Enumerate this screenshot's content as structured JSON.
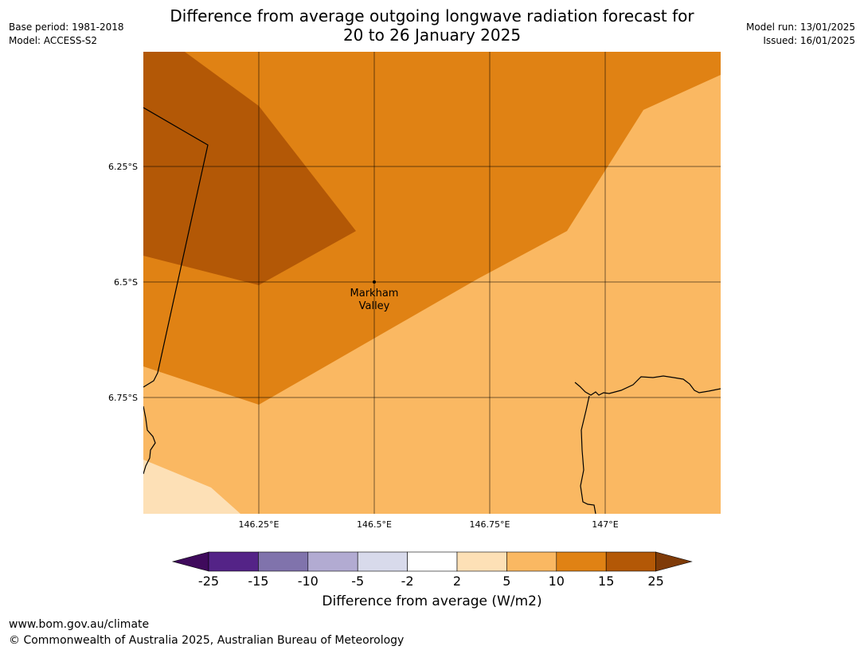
{
  "title_line1": "Difference from average outgoing longwave radiation forecast for",
  "title_line2": "20 to 26 January 2025",
  "meta_left": [
    "Base period: 1981-2018",
    "Model: ACCESS-S2"
  ],
  "meta_right": [
    "Model run: 13/01/2025",
    "Issued: 16/01/2025"
  ],
  "lat_labels": [
    "6.25°S",
    "6.5°S",
    "6.75°S"
  ],
  "lon_labels": [
    "146.25°E",
    "146.5°E",
    "146.75°E",
    "147°E"
  ],
  "place": {
    "line1": "Markham",
    "line2": "Valley"
  },
  "colorbar": {
    "title": "Difference from average (W/m2)",
    "ticks": [
      "-25",
      "-15",
      "-10",
      "-5",
      "-2",
      "2",
      "5",
      "10",
      "15",
      "25"
    ],
    "colors": [
      "#3f0a5c",
      "#542387",
      "#8073ac",
      "#b2abd2",
      "#d8daeb",
      "#ffffff",
      "#fde0b6",
      "#fab862",
      "#e08214",
      "#b35806",
      "#7f3b08"
    ]
  },
  "legend_colors": {
    "dark": "#b35806",
    "mid": "#e08214",
    "light": "#fab862",
    "pale": "#fde0b6"
  },
  "footer": [
    "www.bom.gov.au/climate",
    "© Commonwealth of Australia 2025, Australian Bureau of Meteorology"
  ]
}
